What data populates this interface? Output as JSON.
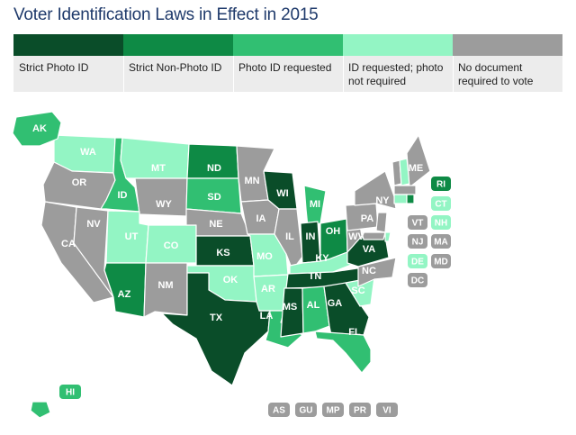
{
  "title": "Voter Identification Laws in Effect in 2015",
  "colors": {
    "strict_photo": "#0a4d29",
    "strict_nonphoto": "#0e8a45",
    "photo_requested": "#31bf72",
    "id_requested": "#93f5c4",
    "no_document": "#9c9c9c"
  },
  "legend": [
    {
      "key": "strict_photo",
      "label": "Strict Photo ID"
    },
    {
      "key": "strict_nonphoto",
      "label": "Strict Non-Photo ID"
    },
    {
      "key": "photo_requested",
      "label": "Photo ID requested"
    },
    {
      "key": "id_requested",
      "label": "ID requested; photo not required"
    },
    {
      "key": "no_document",
      "label": "No document required to vote"
    }
  ],
  "states": {
    "AK": "photo_requested",
    "HI": "photo_requested",
    "WA": "id_requested",
    "OR": "no_document",
    "CA": "no_document",
    "NV": "no_document",
    "ID": "photo_requested",
    "MT": "id_requested",
    "WY": "no_document",
    "UT": "id_requested",
    "AZ": "strict_nonphoto",
    "CO": "id_requested",
    "NM": "no_document",
    "ND": "strict_nonphoto",
    "SD": "photo_requested",
    "NE": "no_document",
    "KS": "strict_photo",
    "OK": "id_requested",
    "TX": "strict_photo",
    "MN": "no_document",
    "IA": "no_document",
    "MO": "id_requested",
    "AR": "id_requested",
    "LA": "photo_requested",
    "WI": "strict_photo",
    "IL": "no_document",
    "MI": "photo_requested",
    "IN": "strict_photo",
    "OH": "strict_nonphoto",
    "KY": "id_requested",
    "TN": "strict_photo",
    "MS": "strict_photo",
    "AL": "photo_requested",
    "GA": "strict_photo",
    "FL": "photo_requested",
    "SC": "id_requested",
    "NC": "no_document",
    "VA": "strict_photo",
    "WV": "no_document",
    "PA": "no_document",
    "NY": "no_document",
    "ME": "no_document",
    "VT": "no_document",
    "NH": "id_requested",
    "MA": "no_document",
    "CT": "id_requested",
    "RI": "strict_nonphoto",
    "NJ": "no_document",
    "DE": "id_requested",
    "MD": "no_document",
    "DC": "no_document"
  },
  "badges": [
    "RI",
    "CT",
    "NH",
    "VT",
    "MA",
    "NJ",
    "DE",
    "MD",
    "DC"
  ],
  "territories": [
    "AS",
    "GU",
    "MP",
    "PR",
    "VI"
  ]
}
